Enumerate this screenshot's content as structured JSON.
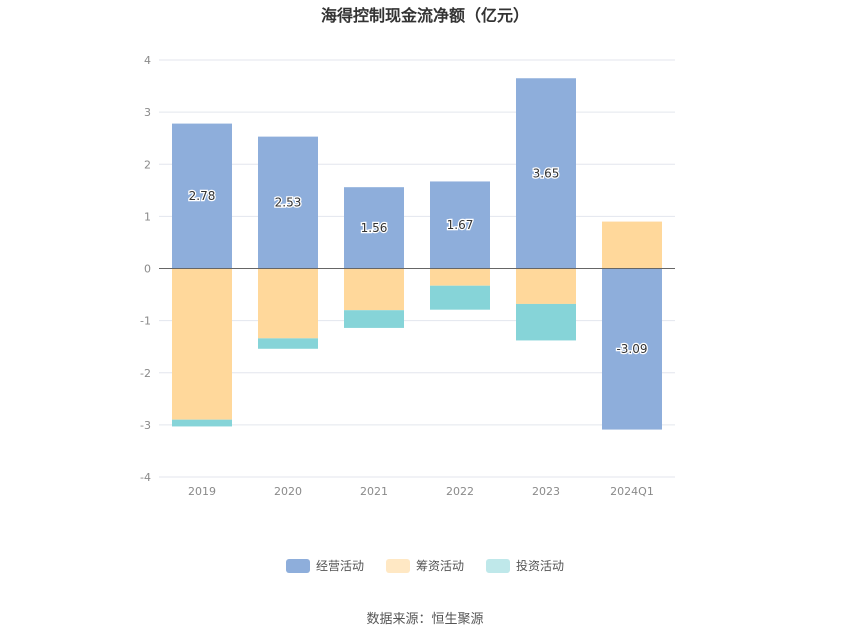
{
  "title": "海得控制现金流净额（亿元）",
  "source": "数据来源：恒生聚源",
  "colors": {
    "operating": "#8eaedb",
    "financing": "#ffd89b",
    "investing": "#86d4d8",
    "investing_legend": "#bfe8ea",
    "financing_legend": "#ffe8c4",
    "grid": "#e3e6ee",
    "zero_line": "#666666",
    "tick_text": "#8a8a8a",
    "label_text": "#333333"
  },
  "chart_data": {
    "type": "bar",
    "stacked": true,
    "title": "海得控制现金流净额（亿元）",
    "categories": [
      "2019",
      "2020",
      "2021",
      "2022",
      "2023",
      "2024Q1"
    ],
    "ylim": [
      -4,
      4
    ],
    "yticks": [
      -4,
      -3,
      -2,
      -1,
      0,
      1,
      2,
      3,
      4
    ],
    "grid": true,
    "legend_position": "bottom",
    "series": [
      {
        "name": "经营活动",
        "key": "operating",
        "values": [
          2.78,
          2.53,
          1.56,
          1.67,
          3.65,
          -3.09
        ],
        "labels": [
          "2.78",
          "2.53",
          "1.56",
          "1.67",
          "3.65",
          "-3.09"
        ]
      },
      {
        "name": "筹资活动",
        "key": "financing",
        "values": [
          -2.9,
          -1.34,
          -0.8,
          -0.33,
          -0.68,
          0.9
        ]
      },
      {
        "name": "投资活动",
        "key": "investing",
        "values": [
          -0.13,
          -0.2,
          -0.34,
          -0.46,
          -0.7,
          0.0
        ]
      }
    ]
  }
}
